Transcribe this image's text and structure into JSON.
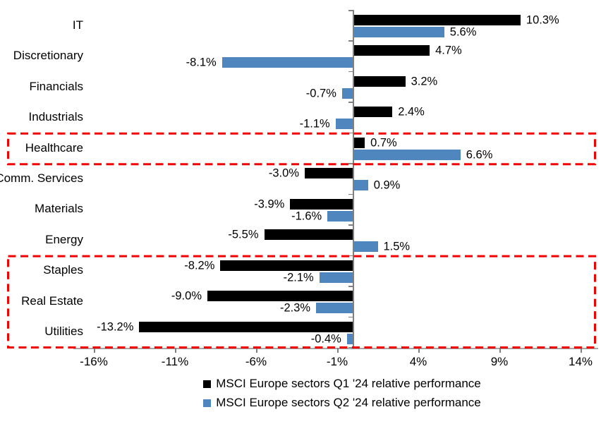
{
  "chart_data": {
    "type": "bar",
    "orientation": "horizontal",
    "title": "",
    "categories": [
      "IT",
      "Discretionary",
      "Financials",
      "Industrials",
      "Healthcare",
      "Comm. Services",
      "Materials",
      "Energy",
      "Staples",
      "Real Estate",
      "Utilities"
    ],
    "series": [
      {
        "name": "MSCI Europe sectors Q1 '24 relative performance",
        "color": "#000000",
        "values": [
          10.3,
          4.7,
          3.2,
          2.4,
          0.7,
          -3.0,
          -3.9,
          -5.5,
          -8.2,
          -9.0,
          -13.2
        ],
        "labels": [
          "10.3%",
          "4.7%",
          "3.2%",
          "2.4%",
          "0.7%",
          "-3.0%",
          "-3.9%",
          "-5.5%",
          "-8.2%",
          "-9.0%",
          "-13.2%"
        ]
      },
      {
        "name": "MSCI Europe sectors Q2 '24 relative performance",
        "color": "#4E86BD",
        "values": [
          5.6,
          -8.1,
          -0.7,
          -1.1,
          6.6,
          0.9,
          -1.6,
          1.5,
          -2.1,
          -2.3,
          -0.4
        ],
        "labels": [
          "5.6%",
          "-8.1%",
          "-0.7%",
          "-1.1%",
          "6.6%",
          "0.9%",
          "-1.6%",
          "1.5%",
          "-2.1%",
          "-2.3%",
          "-0.4%"
        ]
      }
    ],
    "x_axis": {
      "tick_labels": [
        "-16%",
        "-11%",
        "-6%",
        "-1%",
        "4%",
        "9%",
        "14%"
      ],
      "tick_values": [
        -16,
        -11,
        -6,
        -1,
        4,
        9,
        14
      ],
      "range": [
        -17,
        15
      ],
      "unit": "%"
    },
    "grid": false,
    "legend_position": "bottom",
    "highlights": [
      {
        "categories": [
          "Healthcare"
        ],
        "color": "#F30000",
        "style": "dashed"
      },
      {
        "categories": [
          "Staples",
          "Real Estate",
          "Utilities"
        ],
        "color": "#F30000",
        "style": "dashed"
      }
    ]
  },
  "colors": {
    "q1_bar": "#000000",
    "q2_bar": "#4E86BD",
    "highlight_box": "#F30000",
    "axis": "#808080"
  }
}
